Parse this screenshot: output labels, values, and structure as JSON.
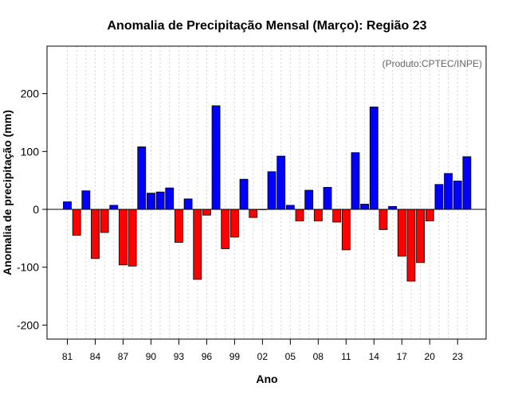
{
  "chart_data": {
    "type": "bar",
    "title": "Anomalia de Precipitação Mensal (Março): Região 23",
    "source_note": "(Produto:CPTEC/INPE)",
    "xlabel": "Ano",
    "ylabel": "Anomalia de precipitação (mm)",
    "ylim": [
      -225,
      280
    ],
    "yticks": [
      -200,
      -100,
      0,
      100,
      200
    ],
    "xtick_labels": [
      "81",
      "84",
      "87",
      "90",
      "93",
      "96",
      "99",
      "02",
      "05",
      "08",
      "11",
      "14",
      "17",
      "20",
      "23"
    ],
    "categories": [
      "1981",
      "1982",
      "1983",
      "1984",
      "1985",
      "1986",
      "1987",
      "1988",
      "1989",
      "1990",
      "1991",
      "1992",
      "1993",
      "1994",
      "1995",
      "1996",
      "1997",
      "1998",
      "1999",
      "2000",
      "2001",
      "2002",
      "2003",
      "2004",
      "2005",
      "2006",
      "2007",
      "2008",
      "2009",
      "2010",
      "2011",
      "2012",
      "2013",
      "2014",
      "2015",
      "2016",
      "2017",
      "2018",
      "2019",
      "2020",
      "2021",
      "2022",
      "2023",
      "2024"
    ],
    "values": [
      13,
      -45,
      32,
      -85,
      -40,
      7,
      -96,
      -98,
      108,
      28,
      30,
      37,
      -57,
      18,
      -121,
      -10,
      179,
      -68,
      -48,
      52,
      -14,
      0,
      65,
      92,
      7,
      -20,
      33,
      -20,
      38,
      -22,
      -70,
      98,
      9,
      177,
      -35,
      5,
      -81,
      -124,
      -92,
      -20,
      43,
      62,
      49,
      91
    ],
    "colors": {
      "positive": "#0000ff",
      "negative": "#ff0000",
      "axis": "#000000",
      "grid": "#d3d3d3"
    }
  }
}
